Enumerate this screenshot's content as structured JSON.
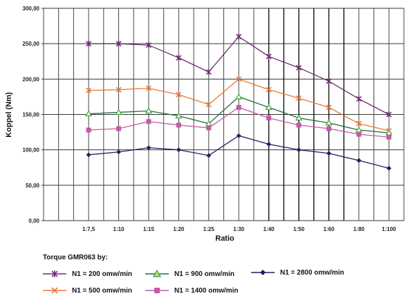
{
  "chart_data": {
    "type": "line",
    "title": "",
    "xlabel": "Ratio",
    "ylabel": "Koppel (Nm)",
    "ylim": [
      0,
      300
    ],
    "yticks": [
      "0,00",
      "50,00",
      "100,00",
      "150,00",
      "200,00",
      "250,00",
      "300,00"
    ],
    "ytick_values": [
      0,
      50,
      100,
      150,
      200,
      250,
      300
    ],
    "categories": [
      "1:7,5",
      "1:10",
      "1:15",
      "1:20",
      "1:25",
      "1:30",
      "1:40",
      "1:50",
      "1:60",
      "1:80",
      "1:100"
    ],
    "grid": true,
    "legend_position": "bottom",
    "legend_title": "Torque GMR063 by:",
    "series": [
      {
        "name": "N1 = 200 omw/min",
        "color": "#6b2a6e",
        "marker": "star",
        "values": [
          250,
          250,
          248,
          230,
          210,
          260,
          232,
          216,
          197,
          172,
          150
        ]
      },
      {
        "name": "N1 = 500 omw/min",
        "color": "#e8793a",
        "marker": "x",
        "values": [
          184,
          185,
          187,
          178,
          164,
          200,
          185,
          173,
          160,
          137,
          127
        ]
      },
      {
        "name": "N1 = 900 omw/min",
        "color": "#1f6b35",
        "marker": "triangle",
        "marker_fill": "#7cc24a",
        "values": [
          151,
          153,
          155,
          148,
          137,
          175,
          160,
          145,
          138,
          128,
          124
        ]
      },
      {
        "name": "N1 = 1400 omw/min",
        "color": "#c25aa6",
        "marker": "square",
        "values": [
          128,
          130,
          140,
          135,
          131,
          160,
          145,
          135,
          130,
          122,
          118
        ]
      },
      {
        "name": "N1 = 2800 omw/min",
        "color": "#1f1f5e",
        "marker": "diamond",
        "values": [
          93,
          97,
          103,
          100,
          92,
          120,
          108,
          100,
          95,
          85,
          74
        ]
      }
    ]
  },
  "legend": {
    "title": "Torque GMR063 by:",
    "items": [
      {
        "label": "N1 = 200 omw/min"
      },
      {
        "label": "N1 = 900 omw/min"
      },
      {
        "label": "N1 = 2800 omw/min"
      },
      {
        "label": "N1 = 500 omw/min"
      },
      {
        "label": "N1 = 1400 omw/min"
      }
    ]
  }
}
